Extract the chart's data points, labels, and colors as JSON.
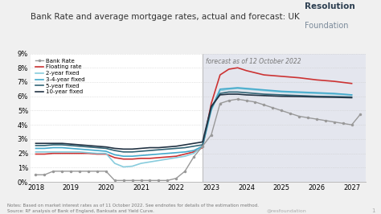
{
  "title": "Bank Rate and average mortgage rates, actual and forecast: UK",
  "forecast_label": "forecast as of 12 October 2022",
  "forecast_start": 2022.75,
  "ylim": [
    0,
    9
  ],
  "yticks": [
    0,
    1,
    2,
    3,
    4,
    5,
    6,
    7,
    8,
    9
  ],
  "xlim": [
    2017.85,
    2027.4
  ],
  "xticks": [
    2018,
    2019,
    2020,
    2021,
    2022,
    2023,
    2024,
    2025,
    2026,
    2027
  ],
  "fig_bg_color": "#f0f0f0",
  "plot_bg": "#ffffff",
  "forecast_bg": "#e4e6ee",
  "notes": "Notes: Based on market interest rates as of 11 October 2022. See endnotes for details of the estimation method.\nSource: RF analysis of Bank of England, Banksats and Yield Curve.",
  "watermark": "@resfoundation",
  "logo_bold": "Resolution",
  "logo_light": "Foundation",
  "logo_bold_color": "#2c3e50",
  "logo_light_color": "#7a8a9a",
  "logo_highlight_color": "#e8c840",
  "series": {
    "bank_rate": {
      "label": "Bank Rate",
      "color": "#999999",
      "marker": "o",
      "markersize": 2.5,
      "linewidth": 1.0,
      "x": [
        2018.0,
        2018.25,
        2018.5,
        2018.75,
        2019.0,
        2019.25,
        2019.5,
        2019.75,
        2020.0,
        2020.25,
        2020.5,
        2020.75,
        2021.0,
        2021.25,
        2021.5,
        2021.75,
        2022.0,
        2022.25,
        2022.5,
        2022.75,
        2023.0,
        2023.25,
        2023.5,
        2023.75,
        2024.0,
        2024.25,
        2024.5,
        2024.75,
        2025.0,
        2025.25,
        2025.5,
        2025.75,
        2026.0,
        2026.25,
        2026.5,
        2026.75,
        2027.0,
        2027.25
      ],
      "y": [
        0.5,
        0.5,
        0.75,
        0.75,
        0.75,
        0.75,
        0.75,
        0.75,
        0.75,
        0.1,
        0.1,
        0.1,
        0.1,
        0.1,
        0.1,
        0.1,
        0.25,
        0.75,
        1.75,
        2.5,
        3.3,
        5.5,
        5.7,
        5.8,
        5.7,
        5.6,
        5.4,
        5.2,
        5.0,
        4.8,
        4.6,
        4.5,
        4.4,
        4.3,
        4.2,
        4.1,
        4.0,
        4.75
      ]
    },
    "floating": {
      "label": "Floating rate",
      "color": "#cc3333",
      "linewidth": 1.2,
      "x": [
        2018.0,
        2018.25,
        2018.5,
        2018.75,
        2019.0,
        2019.25,
        2019.5,
        2019.75,
        2020.0,
        2020.25,
        2020.5,
        2020.75,
        2021.0,
        2021.25,
        2021.5,
        2021.75,
        2022.0,
        2022.25,
        2022.5,
        2022.75,
        2023.0,
        2023.25,
        2023.5,
        2023.75,
        2024.0,
        2024.5,
        2025.0,
        2025.5,
        2026.0,
        2026.5,
        2027.0
      ],
      "y": [
        1.95,
        1.95,
        2.0,
        2.0,
        2.0,
        2.0,
        2.0,
        1.95,
        1.95,
        1.7,
        1.6,
        1.6,
        1.65,
        1.65,
        1.7,
        1.75,
        1.8,
        1.95,
        2.1,
        2.4,
        5.5,
        7.5,
        7.9,
        8.0,
        7.8,
        7.5,
        7.4,
        7.3,
        7.15,
        7.05,
        6.9
      ]
    },
    "two_year": {
      "label": "2-year fixed",
      "color": "#88ccdd",
      "linewidth": 1.2,
      "x": [
        2018.0,
        2018.25,
        2018.5,
        2018.75,
        2019.0,
        2019.25,
        2019.5,
        2019.75,
        2020.0,
        2020.25,
        2020.5,
        2020.75,
        2021.0,
        2021.25,
        2021.5,
        2021.75,
        2022.0,
        2022.25,
        2022.5,
        2022.75,
        2023.0,
        2023.25,
        2023.5,
        2023.75,
        2024.0,
        2024.5,
        2025.0,
        2025.5,
        2026.0,
        2026.5,
        2027.0
      ],
      "y": [
        2.1,
        2.1,
        2.1,
        2.1,
        2.1,
        2.1,
        2.05,
        2.0,
        2.0,
        1.3,
        1.05,
        1.1,
        1.3,
        1.4,
        1.5,
        1.6,
        1.7,
        1.8,
        2.0,
        2.5,
        5.0,
        6.4,
        6.5,
        6.55,
        6.5,
        6.4,
        6.3,
        6.25,
        6.2,
        6.15,
        6.1
      ]
    },
    "three_four_year": {
      "label": "3-4-year fixed",
      "color": "#44aacc",
      "linewidth": 1.2,
      "x": [
        2018.0,
        2018.25,
        2018.5,
        2018.75,
        2019.0,
        2019.25,
        2019.5,
        2019.75,
        2020.0,
        2020.25,
        2020.5,
        2020.75,
        2021.0,
        2021.25,
        2021.5,
        2021.75,
        2022.0,
        2022.25,
        2022.5,
        2022.75,
        2023.0,
        2023.25,
        2023.5,
        2023.75,
        2024.0,
        2024.5,
        2025.0,
        2025.5,
        2026.0,
        2026.5,
        2027.0
      ],
      "y": [
        2.35,
        2.35,
        2.4,
        2.4,
        2.35,
        2.3,
        2.25,
        2.2,
        2.15,
        1.9,
        1.8,
        1.8,
        1.85,
        1.9,
        1.95,
        2.0,
        2.05,
        2.1,
        2.2,
        2.5,
        5.1,
        6.5,
        6.55,
        6.6,
        6.55,
        6.45,
        6.35,
        6.3,
        6.25,
        6.2,
        6.1
      ]
    },
    "five_year": {
      "label": "5-year fixed",
      "color": "#336677",
      "linewidth": 1.2,
      "x": [
        2018.0,
        2018.25,
        2018.5,
        2018.75,
        2019.0,
        2019.25,
        2019.5,
        2019.75,
        2020.0,
        2020.25,
        2020.5,
        2020.75,
        2021.0,
        2021.25,
        2021.5,
        2021.75,
        2022.0,
        2022.25,
        2022.5,
        2022.75,
        2023.0,
        2023.25,
        2023.5,
        2023.75,
        2024.0,
        2024.5,
        2025.0,
        2025.5,
        2026.0,
        2026.5,
        2027.0
      ],
      "y": [
        2.55,
        2.55,
        2.6,
        2.6,
        2.55,
        2.5,
        2.45,
        2.4,
        2.35,
        2.2,
        2.1,
        2.1,
        2.15,
        2.2,
        2.25,
        2.3,
        2.35,
        2.4,
        2.5,
        2.6,
        5.2,
        6.2,
        6.3,
        6.3,
        6.25,
        6.15,
        6.1,
        6.05,
        6.0,
        5.98,
        5.95
      ]
    },
    "ten_year": {
      "label": "10-year fixed",
      "color": "#223344",
      "linewidth": 1.2,
      "x": [
        2018.0,
        2018.25,
        2018.5,
        2018.75,
        2019.0,
        2019.25,
        2019.5,
        2019.75,
        2020.0,
        2020.25,
        2020.5,
        2020.75,
        2021.0,
        2021.25,
        2021.5,
        2021.75,
        2022.0,
        2022.25,
        2022.5,
        2022.75,
        2023.0,
        2023.25,
        2023.5,
        2023.75,
        2024.0,
        2024.5,
        2025.0,
        2025.5,
        2026.0,
        2026.5,
        2027.0
      ],
      "y": [
        2.7,
        2.7,
        2.7,
        2.7,
        2.65,
        2.6,
        2.55,
        2.5,
        2.45,
        2.35,
        2.3,
        2.3,
        2.35,
        2.4,
        2.4,
        2.45,
        2.5,
        2.6,
        2.7,
        2.8,
        5.3,
        6.1,
        6.15,
        6.15,
        6.1,
        6.05,
        6.0,
        5.98,
        5.95,
        5.93,
        5.9
      ]
    }
  }
}
